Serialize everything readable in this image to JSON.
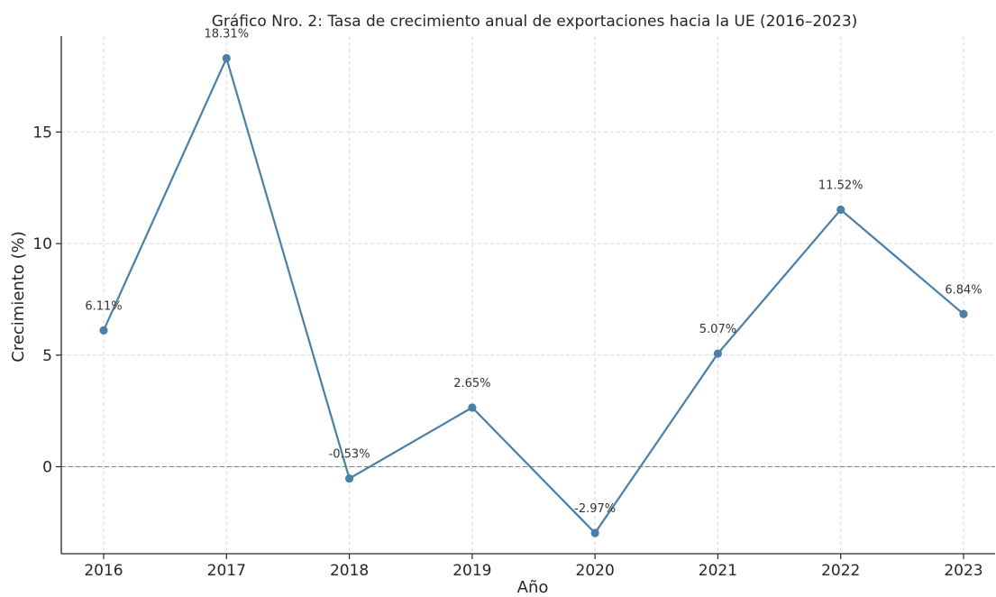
{
  "chart_data": {
    "type": "line",
    "title": "Gráfico Nro. 2: Tasa de crecimiento anual de exportaciones hacia la UE (2016–2023)",
    "xlabel": "Año",
    "ylabel": "Crecimiento (%)",
    "categories": [
      "2016",
      "2017",
      "2018",
      "2019",
      "2020",
      "2021",
      "2022",
      "2023"
    ],
    "values": [
      6.11,
      18.31,
      -0.53,
      2.65,
      -2.97,
      5.07,
      11.52,
      6.84
    ],
    "data_labels": [
      "6.11%",
      "18.31%",
      "-0.53%",
      "2.65%",
      "-2.97%",
      "5.07%",
      "11.52%",
      "6.84%"
    ],
    "y_ticks": [
      0,
      5,
      10,
      15
    ],
    "y_tick_labels": [
      "0",
      "5",
      "10",
      "15"
    ],
    "ylim": [
      -3.9,
      19.3
    ],
    "grid": true,
    "reference_line": 0,
    "colors": {
      "line": "#4a7fa8",
      "marker": "#4a7fa8",
      "reference": "#808080",
      "grid": "#d9d9d9"
    }
  }
}
